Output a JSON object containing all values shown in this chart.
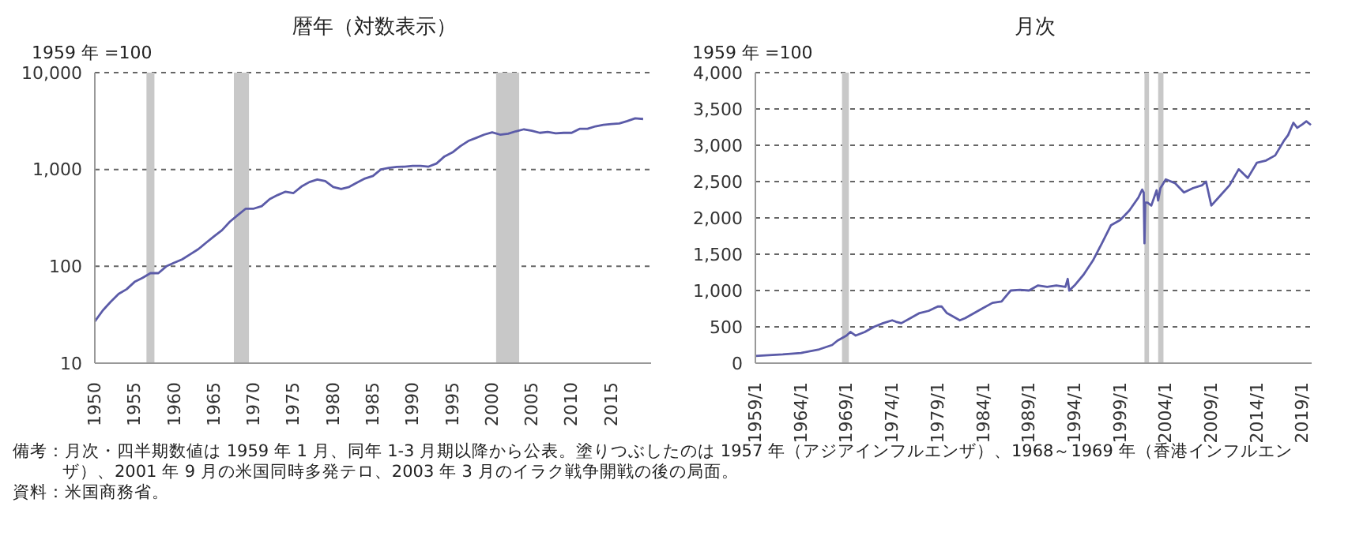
{
  "chart_data": [
    {
      "type": "line",
      "title": "暦年（対数表示）",
      "ylabel": "1959 年 =100",
      "log": "y",
      "grid": "y",
      "color": "#5b5ba8",
      "x": [
        1950,
        1951,
        1952,
        1953,
        1954,
        1955,
        1956,
        1957,
        1958,
        1959,
        1960,
        1961,
        1962,
        1963,
        1964,
        1965,
        1966,
        1967,
        1968,
        1969,
        1970,
        1971,
        1972,
        1973,
        1974,
        1975,
        1976,
        1977,
        1978,
        1979,
        1980,
        1981,
        1982,
        1983,
        1984,
        1985,
        1986,
        1987,
        1988,
        1989,
        1990,
        1991,
        1992,
        1993,
        1994,
        1995,
        1996,
        1997,
        1998,
        1999,
        2000,
        2001,
        2002,
        2003,
        2004,
        2005,
        2006,
        2007,
        2008,
        2009,
        2010,
        2011,
        2012,
        2013,
        2014,
        2015,
        2016,
        2017,
        2018,
        2019
      ],
      "values": [
        27,
        35,
        43,
        52,
        58,
        69,
        76,
        85,
        85,
        100,
        109,
        118,
        133,
        150,
        175,
        204,
        236,
        289,
        338,
        394,
        394,
        418,
        494,
        544,
        590,
        571,
        666,
        741,
        787,
        760,
        660,
        630,
        660,
        733,
        807,
        857,
        1000,
        1038,
        1062,
        1070,
        1087,
        1087,
        1070,
        1153,
        1364,
        1500,
        1740,
        1970,
        2120,
        2290,
        2420,
        2290,
        2340,
        2480,
        2600,
        2510,
        2390,
        2440,
        2360,
        2390,
        2390,
        2630,
        2630,
        2790,
        2890,
        2950,
        2990,
        3160,
        3370,
        3320
      ],
      "xlim": [
        1950,
        2020
      ],
      "xticks": [
        1950,
        1955,
        1960,
        1965,
        1970,
        1975,
        1980,
        1985,
        1990,
        1995,
        2000,
        2005,
        2010,
        2015
      ],
      "ylim": [
        10,
        10000
      ],
      "yticks": [
        10,
        100,
        {
          "value": 1000,
          "label": "1,000"
        },
        {
          "value": 10000,
          "label": "10,000"
        }
      ],
      "bands": [
        {
          "axis": "x",
          "from": 1956.5,
          "to": 1957.5,
          "color": "#c8c8c8"
        },
        {
          "axis": "x",
          "from": 1967.5,
          "to": 1969.4,
          "color": "#c8c8c8"
        },
        {
          "axis": "x",
          "from": 2000.5,
          "to": 2003.4,
          "color": "#c8c8c8"
        }
      ],
      "annotations": [
        "備考：月次・四半期数値は 1959 年 1 月、同年 1-3 月期以降から公表。塗りつぶしたのは 1957 年（アジアインフルエンザ）、1968～1969 年（香港インフルエンザ）、2001 年 9 月の米国同時多発テロ、2003 年 3 月のイラク戦争開戦の後の局面。",
        "資料：米国商務省。"
      ]
    },
    {
      "type": "line",
      "title": "月次",
      "ylabel": "1959 年 =100",
      "grid": "y",
      "color": "#5b5ba8",
      "x": [
        "1959-01",
        "1962-01",
        "1964-01",
        "1966-01",
        "1967-06",
        "1968-01",
        "1969-01",
        "1969-06",
        "1970-01",
        "1971-01",
        "1972-01",
        "1973-01",
        "1974-01",
        "1974-06",
        "1975-01",
        "1976-01",
        "1977-01",
        "1978-01",
        "1979-01",
        "1979-06",
        "1980-01",
        "1981-01",
        "1981-06",
        "1982-01",
        "1983-01",
        "1984-01",
        "1985-01",
        "1986-01",
        "1987-01",
        "1988-01",
        "1989-01",
        "1990-01",
        "1991-01",
        "1992-01",
        "1993-01",
        "1993-04",
        "1993-06",
        "1994-01",
        "1995-01",
        "1996-01",
        "1997-01",
        "1998-01",
        "1999-01",
        "2000-01",
        "2001-01",
        "2001-06",
        "2001-08",
        "2001-09",
        "2001-10",
        "2002-01",
        "2002-06",
        "2003-01",
        "2003-03",
        "2003-06",
        "2004-01",
        "2005-01",
        "2006-01",
        "2007-01",
        "2008-01",
        "2008-06",
        "2009-01",
        "2010-01",
        "2011-01",
        "2012-01",
        "2013-01",
        "2014-01",
        "2015-01",
        "2016-01",
        "2017-01",
        "2017-06",
        "2018-01",
        "2018-06",
        "2019-01",
        "2019-06",
        "2019-12"
      ],
      "values": [
        100,
        120,
        140,
        190,
        250,
        310,
        380,
        430,
        380,
        430,
        500,
        550,
        590,
        570,
        550,
        620,
        690,
        720,
        780,
        780,
        690,
        620,
        590,
        620,
        690,
        760,
        830,
        850,
        1000,
        1010,
        1000,
        1070,
        1050,
        1070,
        1050,
        1160,
        1000,
        1070,
        1220,
        1410,
        1650,
        1900,
        1970,
        2100,
        2280,
        2390,
        2350,
        1650,
        2210,
        2210,
        2170,
        2380,
        2240,
        2410,
        2530,
        2480,
        2350,
        2410,
        2450,
        2500,
        2170,
        2310,
        2450,
        2670,
        2550,
        2760,
        2790,
        2860,
        3070,
        3140,
        3310,
        3240,
        3290,
        3330,
        3280
      ],
      "xlim": [
        "1959-01",
        "2020-01"
      ],
      "xticks": [
        {
          "value": "1959-01",
          "label": "1959/1"
        },
        {
          "value": "1964-01",
          "label": "1964/1"
        },
        {
          "value": "1969-01",
          "label": "1969/1"
        },
        {
          "value": "1974-01",
          "label": "1974/1"
        },
        {
          "value": "1979-01",
          "label": "1979/1"
        },
        {
          "value": "1984-01",
          "label": "1984/1"
        },
        {
          "value": "1989-01",
          "label": "1989/1"
        },
        {
          "value": "1994-01",
          "label": "1994/1"
        },
        {
          "value": "1999-01",
          "label": "1999/1"
        },
        {
          "value": "2004-01",
          "label": "2004/1"
        },
        {
          "value": "2009-01",
          "label": "2009/1"
        },
        {
          "value": "2014-01",
          "label": "2014/1"
        },
        {
          "value": "2019-01",
          "label": "2019/1"
        }
      ],
      "ylim": [
        0,
        4000
      ],
      "yticks": [
        0,
        500,
        {
          "value": 1000,
          "label": "1,000"
        },
        {
          "value": 1500,
          "label": "1,500"
        },
        {
          "value": 2000,
          "label": "2,000"
        },
        {
          "value": 2500,
          "label": "2,500"
        },
        {
          "value": 3000,
          "label": "3,000"
        },
        {
          "value": 3500,
          "label": "3,500"
        },
        {
          "value": 4000,
          "label": "4,000"
        }
      ],
      "bands": [
        {
          "axis": "x",
          "from": "1968-07",
          "to": "1969-04",
          "color": "#c8c8c8"
        },
        {
          "axis": "x",
          "from": "2001-09",
          "to": "2002-03",
          "color": "#c8c8c8"
        },
        {
          "axis": "x",
          "from": "2003-03",
          "to": "2003-10",
          "color": "#c8c8c8"
        }
      ]
    }
  ]
}
